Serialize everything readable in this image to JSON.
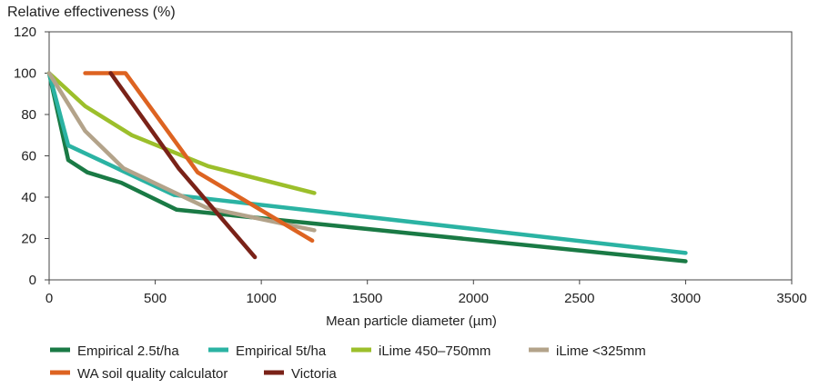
{
  "chart_data": {
    "type": "line",
    "ylabel": "Relative effectiveness (%)",
    "xlabel": "Mean particle diameter (µm)",
    "xlim": [
      0,
      3500
    ],
    "ylim": [
      0,
      120
    ],
    "x_ticks": [
      0,
      500,
      1000,
      1500,
      2000,
      2500,
      3000,
      3500
    ],
    "y_ticks": [
      0,
      20,
      40,
      60,
      80,
      100,
      120
    ],
    "grid": false,
    "legend_position": "bottom",
    "series": [
      {
        "name": "Empirical 2.5t/ha",
        "color": "#1a7a45",
        "points": [
          [
            0,
            100
          ],
          [
            90,
            58
          ],
          [
            180,
            52
          ],
          [
            340,
            47
          ],
          [
            600,
            34
          ],
          [
            3000,
            9
          ]
        ]
      },
      {
        "name": "Empirical 5t/ha",
        "color": "#2bb3a3",
        "points": [
          [
            0,
            100
          ],
          [
            90,
            65
          ],
          [
            340,
            53
          ],
          [
            590,
            41
          ],
          [
            3000,
            13
          ]
        ]
      },
      {
        "name": "iLime 450–750mm",
        "color": "#9cbf2b",
        "points": [
          [
            0,
            100
          ],
          [
            170,
            84
          ],
          [
            390,
            70
          ],
          [
            750,
            55
          ],
          [
            1250,
            42
          ]
        ]
      },
      {
        "name": "iLime <325mm",
        "color": "#b3a38a",
        "points": [
          [
            0,
            100
          ],
          [
            170,
            72
          ],
          [
            350,
            54
          ],
          [
            740,
            35
          ],
          [
            1250,
            24
          ]
        ]
      },
      {
        "name": "WA soil quality calculator",
        "color": "#dd6321",
        "points": [
          [
            170,
            100
          ],
          [
            360,
            100
          ],
          [
            700,
            52
          ],
          [
            1240,
            19
          ]
        ]
      },
      {
        "name": "Victoria",
        "color": "#7a2218",
        "points": [
          [
            290,
            100
          ],
          [
            610,
            54
          ],
          [
            970,
            11
          ]
        ]
      }
    ]
  }
}
